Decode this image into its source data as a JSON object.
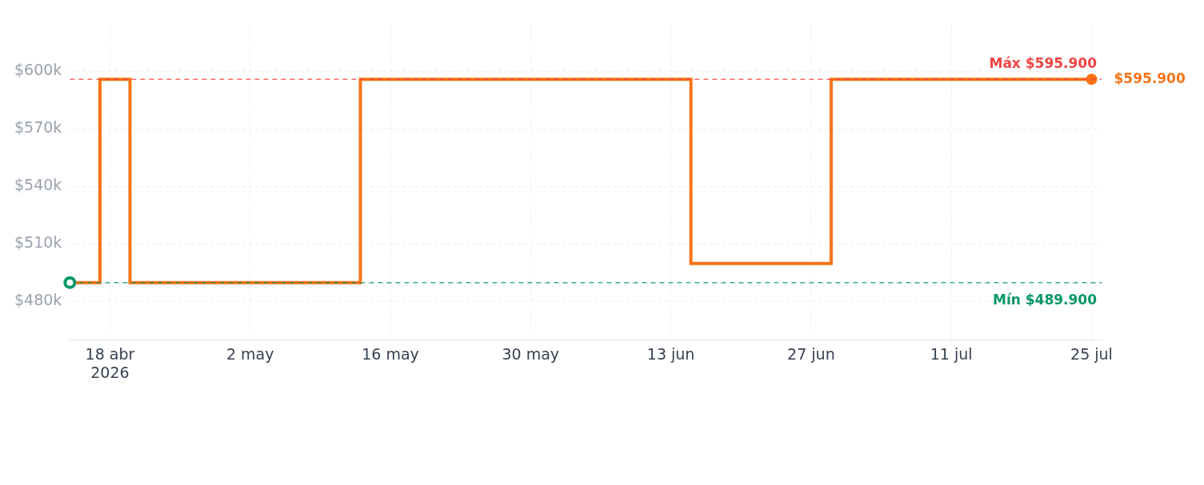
{
  "chart_data": {
    "type": "step",
    "x": [
      "2026-04-14",
      "2026-04-17",
      "2026-04-20",
      "2026-05-13",
      "2026-06-15",
      "2026-06-29",
      "2026-07-25"
    ],
    "series": [
      {
        "color": "#f97316",
        "values": [
          489900,
          595900,
          489900,
          595900,
          499900,
          595900,
          595900
        ],
        "value_labels": [
          null,
          null,
          null,
          null,
          null,
          null,
          "$595.900"
        ]
      }
    ],
    "xlim": [
      "2026-04-14",
      "2026-07-26"
    ],
    "xticks": [
      {
        "value": "2026-04-18",
        "label": "18 abr\n2026"
      },
      {
        "value": "2026-05-02",
        "label": "2 may"
      },
      {
        "value": "2026-05-16",
        "label": "16 may"
      },
      {
        "value": "2026-05-30",
        "label": "30 may"
      },
      {
        "value": "2026-06-13",
        "label": "13 jun"
      },
      {
        "value": "2026-06-27",
        "label": "27 jun"
      },
      {
        "value": "2026-07-11",
        "label": "11 jul"
      },
      {
        "value": "2026-07-25",
        "label": "25 jul"
      }
    ],
    "ylim": [
      460000,
      625000
    ],
    "yticks": [
      {
        "value": 480000,
        "label": "$480k"
      },
      {
        "value": 510000,
        "label": "$510k"
      },
      {
        "value": 540000,
        "label": "$540k"
      },
      {
        "value": 570000,
        "label": "$570k"
      },
      {
        "value": 600000,
        "label": "$600k"
      }
    ],
    "ref_lines": [
      {
        "axis": "y",
        "value": 595900,
        "label": "Máx $595.900",
        "color": "#ef4444",
        "line_style": "dashed"
      },
      {
        "axis": "y",
        "value": 489900,
        "label": "Mín $489.900",
        "color": "#059669",
        "line_style": "dashed"
      }
    ],
    "grid": true,
    "legend": false,
    "line_style": "solid"
  }
}
